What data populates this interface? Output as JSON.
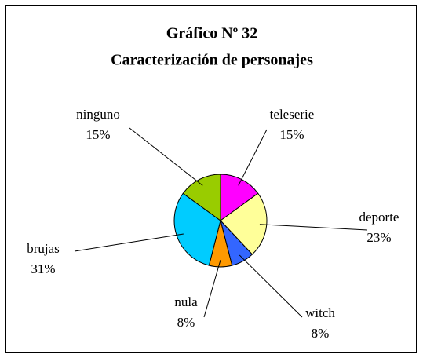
{
  "chart_data": {
    "type": "pie",
    "title": [
      "Gráfico Nº 32",
      "Caracterización de personajes"
    ],
    "categories": [
      "teleserie",
      "deporte",
      "witch",
      "nula",
      "brujas",
      "ninguno"
    ],
    "values": [
      15,
      23,
      8,
      8,
      31,
      15
    ],
    "value_labels": [
      "15%",
      "23%",
      "8%",
      "8%",
      "31%",
      "15%"
    ],
    "colors": [
      "#ff00ff",
      "#ffff99",
      "#3366ff",
      "#ff9900",
      "#00ccff",
      "#99cc00"
    ]
  }
}
